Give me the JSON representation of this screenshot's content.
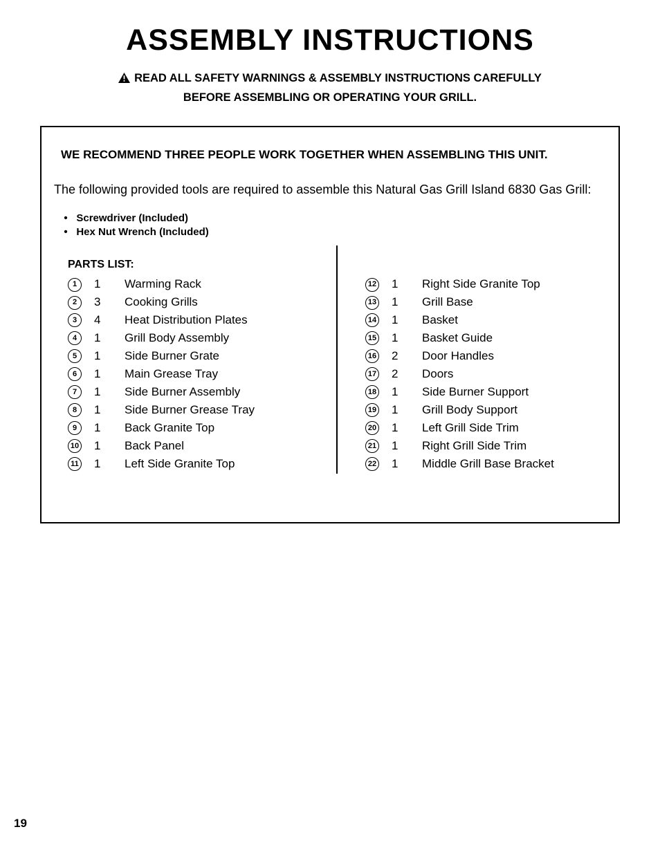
{
  "title": "ASSEMBLY INSTRUCTIONS",
  "warning_line1": "READ ALL SAFETY WARNINGS & ASSEMBLY INSTRUCTIONS CAREFULLY",
  "warning_line2": "BEFORE ASSEMBLING OR OPERATING YOUR GRILL.",
  "recommend": "WE RECOMMEND THREE PEOPLE WORK TOGETHER WHEN ASSEMBLING THIS UNIT.",
  "intro": "The following provided tools are required to assemble this Natural Gas Grill Island 6830 Gas Grill:",
  "tools": [
    "Screwdriver (Included)",
    "Hex Nut Wrench (Included)"
  ],
  "parts_label": "PARTS LIST:",
  "page_number": "19",
  "parts_left": [
    {
      "n": "1",
      "qty": "1",
      "name": "Warming Rack"
    },
    {
      "n": "2",
      "qty": "3",
      "name": "Cooking Grills"
    },
    {
      "n": "3",
      "qty": "4",
      "name": "Heat Distribution Plates"
    },
    {
      "n": "4",
      "qty": "1",
      "name": "Grill Body Assembly"
    },
    {
      "n": "5",
      "qty": "1",
      "name": "Side Burner Grate"
    },
    {
      "n": "6",
      "qty": "1",
      "name": "Main Grease Tray"
    },
    {
      "n": "7",
      "qty": "1",
      "name": "Side Burner Assembly"
    },
    {
      "n": "8",
      "qty": "1",
      "name": "Side Burner Grease Tray"
    },
    {
      "n": "9",
      "qty": "1",
      "name": "Back Granite Top"
    },
    {
      "n": "10",
      "qty": "1",
      "name": "Back Panel"
    },
    {
      "n": "11",
      "qty": "1",
      "name": "Left Side Granite Top"
    }
  ],
  "parts_right": [
    {
      "n": "12",
      "qty": "1",
      "name": "Right Side Granite Top"
    },
    {
      "n": "13",
      "qty": "1",
      "name": "Grill Base"
    },
    {
      "n": "14",
      "qty": "1",
      "name": "Basket"
    },
    {
      "n": "15",
      "qty": "1",
      "name": "Basket Guide"
    },
    {
      "n": "16",
      "qty": "2",
      "name": "Door Handles"
    },
    {
      "n": "17",
      "qty": "2",
      "name": "Doors"
    },
    {
      "n": "18",
      "qty": "1",
      "name": "Side Burner Support"
    },
    {
      "n": "19",
      "qty": "1",
      "name": "Grill Body Support"
    },
    {
      "n": "20",
      "qty": "1",
      "name": "Left Grill Side Trim"
    },
    {
      "n": "21",
      "qty": "1",
      "name": "Right Grill Side Trim"
    },
    {
      "n": "22",
      "qty": "1",
      "name": "Middle Grill Base Bracket"
    }
  ]
}
